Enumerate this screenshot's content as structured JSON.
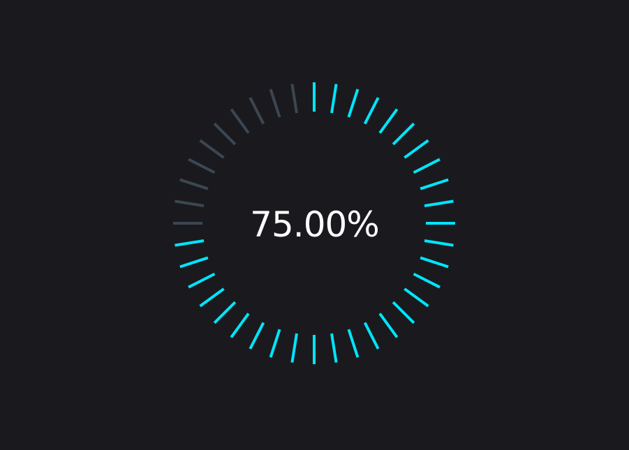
{
  "chart_data": {
    "type": "gauge",
    "value": 75.0,
    "max": 100,
    "display_value": "75.00%",
    "tick_count": 40,
    "active_color": "#00e5ff",
    "inactive_color": "#3b4752",
    "background_color": "#1a1a1e",
    "text_color": "#ffffff",
    "direction": "clockwise",
    "start_position": "top"
  }
}
